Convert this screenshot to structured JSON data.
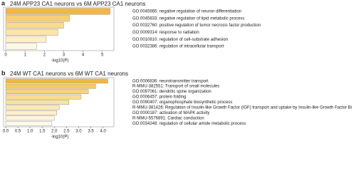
{
  "chart_data": [
    {
      "type": "bar",
      "panel": "a",
      "title": "24M APP23 CA1 neurons vs 6M APP23 CA1 neurons",
      "categories": [
        "GO:0045665: negative regulation of neuron differentiation",
        "GO:0045833: negative regulation of lipid metabolic process",
        "GO:0032760: positive regulation of tumor necrosis factor production",
        "GO:0009314: response to radiation",
        "GO:0010810: regulation of cell-substrate adhesion",
        "GO:0032386: regulation of intracellular transport"
      ],
      "values": [
        5.4,
        3.3,
        3.0,
        2.7,
        2.1,
        1.6
      ],
      "colors": [
        "#f3b73f",
        "#f7cf74",
        "#f9da8f",
        "#fbe5ab",
        "#fcefc9",
        "#fdf7e6"
      ],
      "xlabel": "-log10(P)",
      "xlim": [
        0,
        5.6
      ],
      "xticks": [
        0,
        1,
        2,
        3,
        4,
        5
      ]
    },
    {
      "type": "bar",
      "panel": "b",
      "title": "24M WT CA1 neurons vs 6M WT CA1 neurons",
      "categories": [
        "GO:0006836: neurotransmitter transport",
        "R-MMU-382551: Transport of small molecules",
        "GO:0097061: dendritic spine organization",
        "GO:0006457: protein folding",
        "GO:0090407: organophosphate biosynthetic process",
        "R-MMU-381426: Regulation of Insulin-like Growth Factor (IGF) transport and uptake by Insulin-like Growth Factor Bi",
        "GO:0000187: activation of MAPK activity",
        "R-MMU-5576891: Cardiac conduction",
        "GO:0034248: regulation of cellular amide metabolic process"
      ],
      "values": [
        4.2,
        3.7,
        3.4,
        3.1,
        2.6,
        2.2,
        2.1,
        2.0,
        1.9
      ],
      "colors": [
        "#f3b73f",
        "#f6c85f",
        "#f8d27a",
        "#f9db93",
        "#fae2a6",
        "#fbe9b8",
        "#fcefcb",
        "#fdf4dc",
        "#fef9ec"
      ],
      "xlabel": "-log10(P)",
      "xlim": [
        0,
        4.45
      ],
      "xticks": [
        {
          "value": 0,
          "label": "0.0"
        },
        {
          "value": 0.5,
          "label": "0.5"
        },
        {
          "value": 1,
          "label": "1.0"
        },
        {
          "value": 1.5,
          "label": "1.5"
        },
        {
          "value": 2,
          "label": "2.0"
        },
        {
          "value": 2.5,
          "label": "2.5"
        },
        {
          "value": 3,
          "label": "3.0"
        },
        {
          "value": 3.5,
          "label": "3.5"
        },
        {
          "value": 4,
          "label": "4.0"
        }
      ]
    }
  ]
}
